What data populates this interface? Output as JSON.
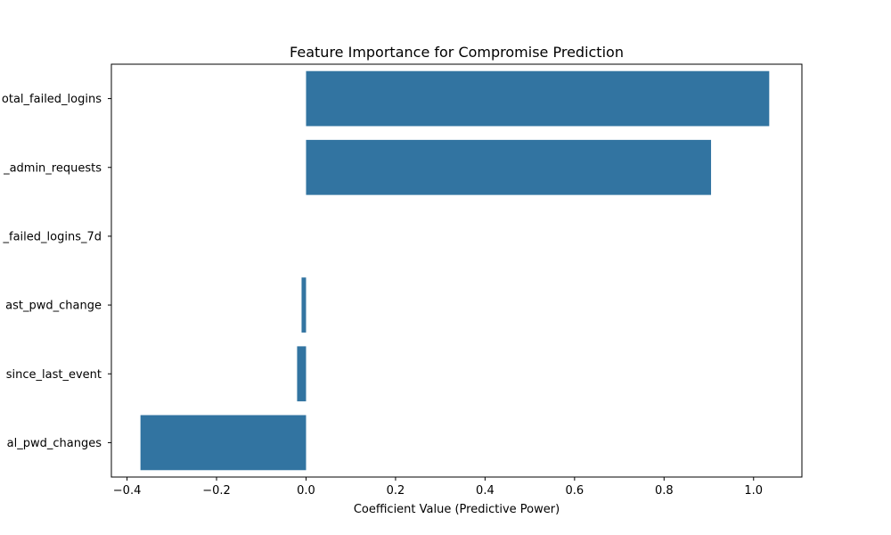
{
  "chart_data": {
    "type": "bar",
    "orientation": "horizontal",
    "title": "Feature Importance for Compromise Prediction",
    "xlabel": "Coefficient Value (Predictive Power)",
    "ylabel": "",
    "categories": [
      "otal_failed_logins",
      "_admin_requests",
      "_failed_logins_7d",
      "ast_pwd_change",
      "since_last_event",
      "al_pwd_changes"
    ],
    "values": [
      1.035,
      0.905,
      0.0,
      -0.01,
      -0.02,
      -0.37
    ],
    "xlim": [
      -0.435,
      1.108
    ],
    "xticks": [
      -0.4,
      -0.2,
      0.0,
      0.2,
      0.4,
      0.6,
      0.8,
      1.0
    ],
    "xtick_labels": [
      "−0.4",
      "−0.2",
      "0.0",
      "0.2",
      "0.4",
      "0.6",
      "0.8",
      "1.0"
    ],
    "bar_color": "#3274a1",
    "grid": false,
    "legend": "none"
  }
}
